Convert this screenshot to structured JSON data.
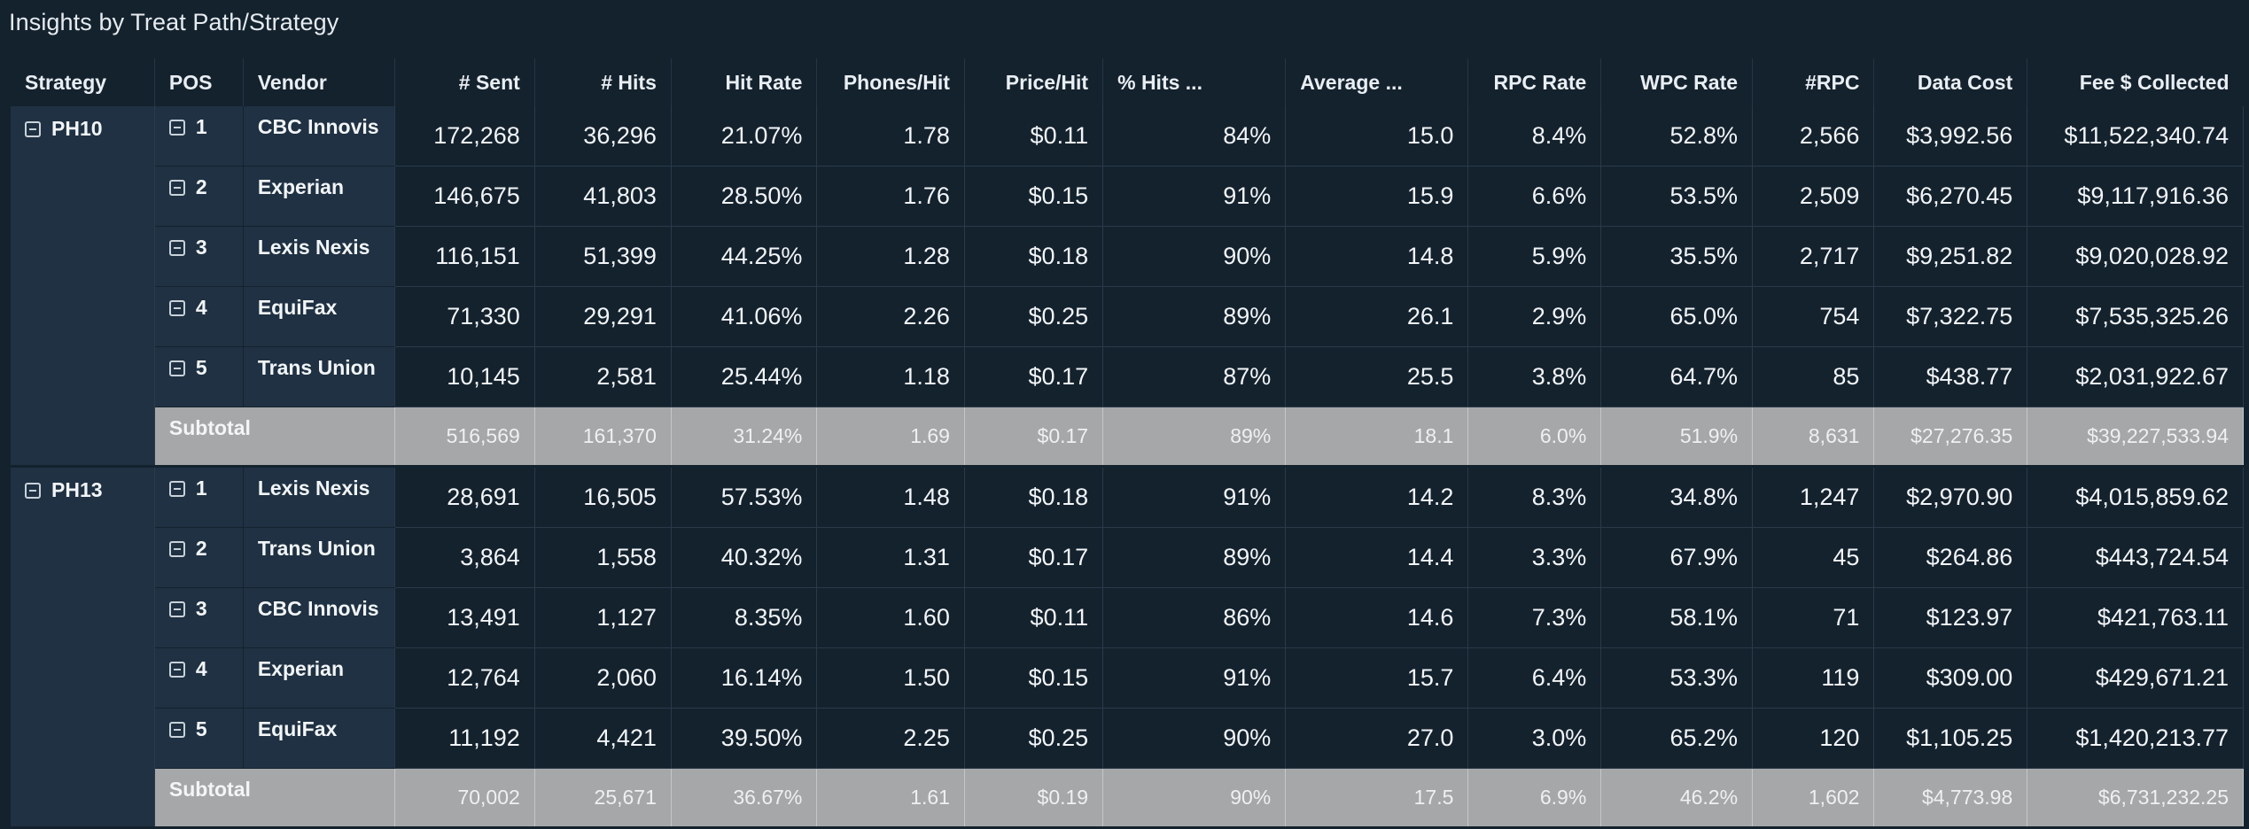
{
  "title": "Insights by Treat Path/Strategy",
  "columns": {
    "strategy": "Strategy",
    "pos": "POS",
    "vendor": "Vendor",
    "sent": "# Sent",
    "hits": "# Hits",
    "hit_rate": "Hit Rate",
    "phones_hit": "Phones/Hit",
    "price_hit": "Price/Hit",
    "pct_hits": "% Hits ...",
    "average": "Average ...",
    "rpc_rate": "RPC Rate",
    "wpc_rate": "WPC Rate",
    "num_rpc": "#RPC",
    "data_cost": "Data Cost",
    "fee": "Fee $ Collected"
  },
  "groups": [
    {
      "strategy": "PH10",
      "rows": [
        {
          "pos": "1",
          "vendor": "CBC Innovis",
          "sent": "172,268",
          "hits": "36,296",
          "hit_rate": "21.07%",
          "phones_hit": "1.78",
          "price_hit": "$0.11",
          "pct_hits": "84%",
          "average": "15.0",
          "rpc_rate": "8.4%",
          "wpc_rate": "52.8%",
          "num_rpc": "2,566",
          "data_cost": "$3,992.56",
          "fee": "$11,522,340.74"
        },
        {
          "pos": "2",
          "vendor": "Experian",
          "sent": "146,675",
          "hits": "41,803",
          "hit_rate": "28.50%",
          "phones_hit": "1.76",
          "price_hit": "$0.15",
          "pct_hits": "91%",
          "average": "15.9",
          "rpc_rate": "6.6%",
          "wpc_rate": "53.5%",
          "num_rpc": "2,509",
          "data_cost": "$6,270.45",
          "fee": "$9,117,916.36"
        },
        {
          "pos": "3",
          "vendor": "Lexis Nexis",
          "sent": "116,151",
          "hits": "51,399",
          "hit_rate": "44.25%",
          "phones_hit": "1.28",
          "price_hit": "$0.18",
          "pct_hits": "90%",
          "average": "14.8",
          "rpc_rate": "5.9%",
          "wpc_rate": "35.5%",
          "num_rpc": "2,717",
          "data_cost": "$9,251.82",
          "fee": "$9,020,028.92"
        },
        {
          "pos": "4",
          "vendor": "EquiFax",
          "sent": "71,330",
          "hits": "29,291",
          "hit_rate": "41.06%",
          "phones_hit": "2.26",
          "price_hit": "$0.25",
          "pct_hits": "89%",
          "average": "26.1",
          "rpc_rate": "2.9%",
          "wpc_rate": "65.0%",
          "num_rpc": "754",
          "data_cost": "$7,322.75",
          "fee": "$7,535,325.26"
        },
        {
          "pos": "5",
          "vendor": "Trans Union",
          "sent": "10,145",
          "hits": "2,581",
          "hit_rate": "25.44%",
          "phones_hit": "1.18",
          "price_hit": "$0.17",
          "pct_hits": "87%",
          "average": "25.5",
          "rpc_rate": "3.8%",
          "wpc_rate": "64.7%",
          "num_rpc": "85",
          "data_cost": "$438.77",
          "fee": "$2,031,922.67"
        }
      ],
      "subtotal": {
        "label": "Subtotal",
        "sent": "516,569",
        "hits": "161,370",
        "hit_rate": "31.24%",
        "phones_hit": "1.69",
        "price_hit": "$0.17",
        "pct_hits": "89%",
        "average": "18.1",
        "rpc_rate": "6.0%",
        "wpc_rate": "51.9%",
        "num_rpc": "8,631",
        "data_cost": "$27,276.35",
        "fee": "$39,227,533.94"
      }
    },
    {
      "strategy": "PH13",
      "rows": [
        {
          "pos": "1",
          "vendor": "Lexis Nexis",
          "sent": "28,691",
          "hits": "16,505",
          "hit_rate": "57.53%",
          "phones_hit": "1.48",
          "price_hit": "$0.18",
          "pct_hits": "91%",
          "average": "14.2",
          "rpc_rate": "8.3%",
          "wpc_rate": "34.8%",
          "num_rpc": "1,247",
          "data_cost": "$2,970.90",
          "fee": "$4,015,859.62"
        },
        {
          "pos": "2",
          "vendor": "Trans Union",
          "sent": "3,864",
          "hits": "1,558",
          "hit_rate": "40.32%",
          "phones_hit": "1.31",
          "price_hit": "$0.17",
          "pct_hits": "89%",
          "average": "14.4",
          "rpc_rate": "3.3%",
          "wpc_rate": "67.9%",
          "num_rpc": "45",
          "data_cost": "$264.86",
          "fee": "$443,724.54"
        },
        {
          "pos": "3",
          "vendor": "CBC Innovis",
          "sent": "13,491",
          "hits": "1,127",
          "hit_rate": "8.35%",
          "phones_hit": "1.60",
          "price_hit": "$0.11",
          "pct_hits": "86%",
          "average": "14.6",
          "rpc_rate": "7.3%",
          "wpc_rate": "58.1%",
          "num_rpc": "71",
          "data_cost": "$123.97",
          "fee": "$421,763.11"
        },
        {
          "pos": "4",
          "vendor": "Experian",
          "sent": "12,764",
          "hits": "2,060",
          "hit_rate": "16.14%",
          "phones_hit": "1.50",
          "price_hit": "$0.15",
          "pct_hits": "91%",
          "average": "15.7",
          "rpc_rate": "6.4%",
          "wpc_rate": "53.3%",
          "num_rpc": "119",
          "data_cost": "$309.00",
          "fee": "$429,671.21"
        },
        {
          "pos": "5",
          "vendor": "EquiFax",
          "sent": "11,192",
          "hits": "4,421",
          "hit_rate": "39.50%",
          "phones_hit": "2.25",
          "price_hit": "$0.25",
          "pct_hits": "90%",
          "average": "27.0",
          "rpc_rate": "3.0%",
          "wpc_rate": "65.2%",
          "num_rpc": "120",
          "data_cost": "$1,105.25",
          "fee": "$1,420,213.77"
        }
      ],
      "subtotal": {
        "label": "Subtotal",
        "sent": "70,002",
        "hits": "25,671",
        "hit_rate": "36.67%",
        "phones_hit": "1.61",
        "price_hit": "$0.19",
        "pct_hits": "90%",
        "average": "17.5",
        "rpc_rate": "6.9%",
        "wpc_rate": "46.2%",
        "num_rpc": "1,602",
        "data_cost": "$4,773.98",
        "fee": "$6,731,232.25"
      }
    }
  ],
  "icons": {
    "collapse": "minus-square-icon"
  }
}
